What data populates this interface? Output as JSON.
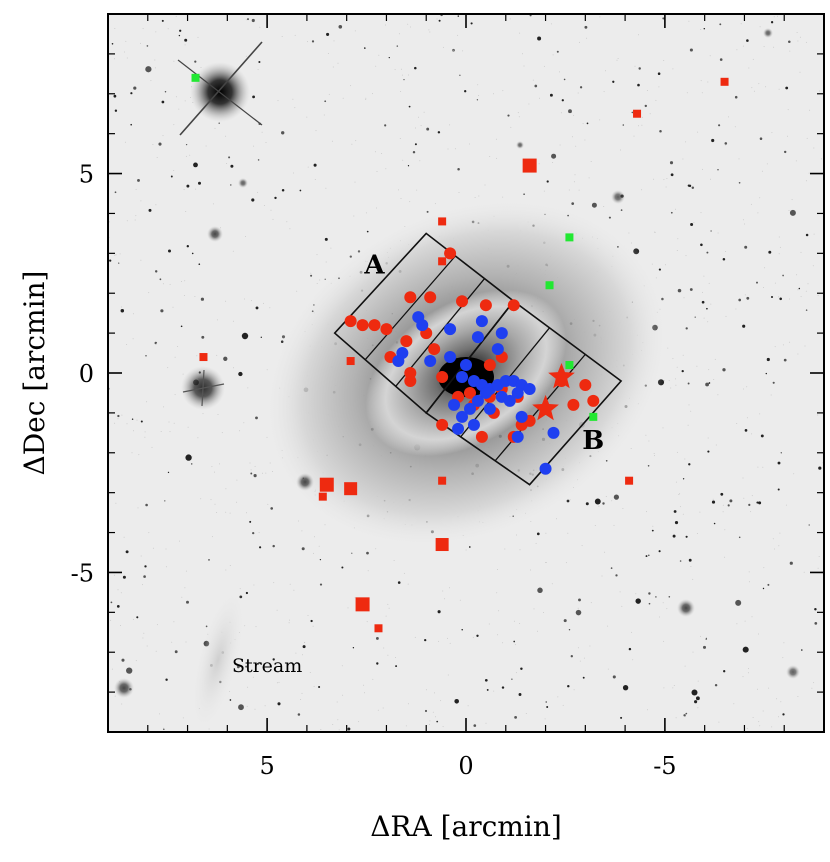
{
  "chart_data": {
    "type": "scatter",
    "title": "",
    "xlabel": "ΔRA [arcmin]",
    "ylabel": "ΔDec [arcmin]",
    "xlim": [
      9,
      -9
    ],
    "ylim": [
      -9,
      9
    ],
    "x_inverted": true,
    "grid": false,
    "legend": "none",
    "xticks": [
      5,
      0,
      -5
    ],
    "xtick_labels": [
      "5",
      "0",
      "-5"
    ],
    "yticks": [
      5,
      0,
      -5
    ],
    "ytick_labels": [
      "5",
      "0",
      "-5"
    ],
    "colors": {
      "red": "#ee2a10",
      "blue": "#1f3ff0",
      "green": "#22e832",
      "outline": "#111111"
    },
    "series": [
      {
        "marker": "circle",
        "color": "#ee2a10",
        "points": [
          [
            -0.4,
            -1.6
          ],
          [
            -0.7,
            -1.0
          ],
          [
            -1.4,
            -1.3
          ],
          [
            -2.0,
            -0.9
          ],
          [
            -2.4,
            -0.2
          ],
          [
            -3.0,
            -0.3
          ],
          [
            -3.2,
            -0.7
          ],
          [
            -0.2,
            -0.8
          ],
          [
            -0.6,
            0.2
          ],
          [
            -0.9,
            0.4
          ],
          [
            -1.3,
            -0.6
          ],
          [
            0.2,
            -0.6
          ],
          [
            0.6,
            -0.1
          ],
          [
            1.4,
            0.0
          ],
          [
            1.9,
            0.4
          ],
          [
            1.5,
            0.8
          ],
          [
            1.0,
            1.0
          ],
          [
            2.0,
            1.1
          ],
          [
            2.3,
            1.2
          ],
          [
            2.6,
            1.2
          ],
          [
            2.9,
            1.3
          ],
          [
            1.4,
            1.9
          ],
          [
            0.9,
            1.9
          ],
          [
            0.1,
            1.8
          ],
          [
            -0.5,
            1.7
          ],
          [
            -1.2,
            1.7
          ],
          [
            0.4,
            3.0
          ],
          [
            -0.9,
            -0.4
          ],
          [
            -1.6,
            -1.2
          ],
          [
            0.6,
            -1.3
          ],
          [
            -2.7,
            -0.8
          ],
          [
            -1.2,
            -1.6
          ],
          [
            -0.1,
            -0.5
          ],
          [
            1.4,
            -0.2
          ],
          [
            0.8,
            0.6
          ],
          [
            -0.6,
            -0.6
          ]
        ]
      },
      {
        "marker": "circle",
        "color": "#1f3ff0",
        "points": [
          [
            1.2,
            1.4
          ],
          [
            1.1,
            1.2
          ],
          [
            -0.4,
            1.3
          ],
          [
            -0.9,
            1.0
          ],
          [
            0.4,
            1.1
          ],
          [
            1.6,
            0.5
          ],
          [
            1.7,
            0.3
          ],
          [
            0.4,
            0.4
          ],
          [
            0.9,
            0.3
          ],
          [
            0.0,
            0.2
          ],
          [
            0.1,
            -0.1
          ],
          [
            -0.2,
            -0.2
          ],
          [
            -0.4,
            -0.3
          ],
          [
            -0.6,
            -0.4
          ],
          [
            -0.8,
            -0.3
          ],
          [
            -1.0,
            -0.2
          ],
          [
            -1.2,
            -0.2
          ],
          [
            -1.4,
            -0.3
          ],
          [
            -1.6,
            -0.4
          ],
          [
            -0.5,
            -0.5
          ],
          [
            -0.3,
            -0.7
          ],
          [
            -0.1,
            -0.9
          ],
          [
            0.1,
            -1.1
          ],
          [
            -0.6,
            -0.9
          ],
          [
            -0.9,
            -0.6
          ],
          [
            -1.1,
            -0.7
          ],
          [
            -1.3,
            -0.5
          ],
          [
            -0.2,
            -1.3
          ],
          [
            0.2,
            -1.4
          ],
          [
            -1.3,
            -1.6
          ],
          [
            -2.2,
            -1.5
          ],
          [
            -2.0,
            -2.4
          ],
          [
            -0.3,
            0.9
          ],
          [
            -0.8,
            0.6
          ],
          [
            -1.4,
            -1.1
          ],
          [
            0.3,
            -0.8
          ]
        ]
      },
      {
        "marker": "star",
        "color": "#ee2a10",
        "points": [
          [
            -2.4,
            -0.1
          ],
          [
            -2.0,
            -0.9
          ]
        ]
      },
      {
        "marker": "square",
        "color": "#ee2a10",
        "points": [
          [
            -1.6,
            5.2
          ],
          [
            3.5,
            -2.8
          ],
          [
            2.9,
            -2.9
          ],
          [
            0.6,
            -4.3
          ],
          [
            2.6,
            -5.8
          ],
          [
            0.6,
            3.8
          ],
          [
            0.6,
            2.8
          ],
          [
            -4.3,
            6.5
          ],
          [
            -6.5,
            7.3
          ],
          [
            6.6,
            0.4
          ],
          [
            2.9,
            0.3
          ],
          [
            0.6,
            -2.7
          ],
          [
            -4.1,
            -2.7
          ],
          [
            2.2,
            -6.4
          ],
          [
            3.6,
            -3.1
          ]
        ]
      },
      {
        "marker": "square",
        "color": "#22e832",
        "points": [
          [
            6.8,
            7.4
          ],
          [
            -2.6,
            3.4
          ],
          [
            -2.1,
            2.2
          ],
          [
            -2.6,
            0.2
          ],
          [
            -3.2,
            -1.1
          ]
        ]
      }
    ],
    "annotations": [
      {
        "text": "A",
        "x": 2.3,
        "y": 2.5
      },
      {
        "text": "B",
        "x": -3.2,
        "y": -1.9
      },
      {
        "text": "Stream",
        "x": 5.0,
        "y": -7.5
      }
    ],
    "regions": [
      {
        "name": "slit-A",
        "vertices": [
          [
            1.0,
            3.5
          ],
          [
            3.3,
            1.0
          ],
          [
            1.0,
            -1.0
          ],
          [
            -1.2,
            1.8
          ]
        ]
      },
      {
        "name": "slit-B",
        "vertices": [
          [
            -1.2,
            1.8
          ],
          [
            1.0,
            -1.0
          ],
          [
            -1.6,
            -2.8
          ],
          [
            -3.9,
            -0.2
          ]
        ]
      }
    ]
  }
}
